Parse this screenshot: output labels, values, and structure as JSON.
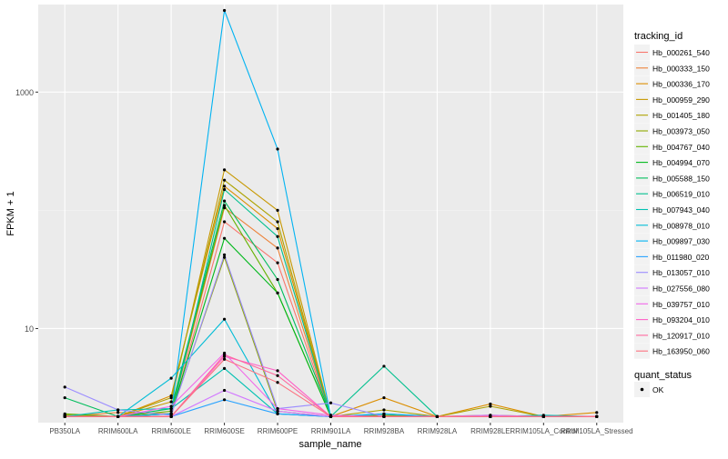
{
  "chart_data": {
    "type": "line",
    "xlabel": "sample_name",
    "ylabel": "FPKM + 1",
    "y_scale": "log10",
    "ylim": [
      1.6,
      5500
    ],
    "grid": true,
    "legend_position": "right",
    "y_ticks": [
      10,
      1000
    ],
    "y_tick_labels": [
      "10",
      "1000"
    ],
    "categories": [
      "PB350LA",
      "RRIM600LA",
      "RRIM600LE",
      "RRIM600SE",
      "RRIM600PE",
      "RRIM901LA",
      "RRIM928BA",
      "RRIM928LA",
      "RRIM928LE",
      "RRIM105LA_Control",
      "RRIM105LA_Stressed"
    ],
    "legend": {
      "color_title": "tracking_id",
      "shape_title": "quant_status",
      "shape_entries": [
        "OK"
      ]
    },
    "series": [
      {
        "name": "Hb_000261_540",
        "color": "#F8766D",
        "values": [
          1.8,
          1.8,
          1.8,
          80,
          36,
          1.8,
          1.8,
          1.8,
          1.8,
          1.8,
          1.8
        ]
      },
      {
        "name": "Hb_000333_150",
        "color": "#EC8239",
        "values": [
          1.8,
          1.95,
          1.9,
          105,
          48,
          1.8,
          1.8,
          1.8,
          1.8,
          1.8,
          1.8
        ]
      },
      {
        "name": "Hb_000336_170",
        "color": "#DB8E00",
        "values": [
          1.85,
          1.8,
          2.7,
          160,
          70,
          1.8,
          2.6,
          1.8,
          2.3,
          1.8,
          1.95
        ]
      },
      {
        "name": "Hb_000959_290",
        "color": "#C79800",
        "values": [
          1.8,
          1.8,
          2.4,
          220,
          100,
          1.8,
          1.8,
          1.8,
          1.8,
          1.8,
          1.8
        ]
      },
      {
        "name": "Hb_001405_180",
        "color": "#AEA200",
        "values": [
          1.85,
          1.8,
          2.6,
          180,
          80,
          1.8,
          2.05,
          1.8,
          2.2,
          1.8,
          1.8
        ]
      },
      {
        "name": "Hb_003973_050",
        "color": "#8FAA00",
        "values": [
          1.85,
          1.8,
          1.9,
          40,
          2.0,
          1.8,
          1.8,
          1.8,
          1.85,
          1.8,
          1.8
        ]
      },
      {
        "name": "Hb_004767_040",
        "color": "#64B200",
        "values": [
          1.9,
          1.8,
          2.0,
          110,
          20,
          1.8,
          1.85,
          1.8,
          1.8,
          1.8,
          1.8
        ]
      },
      {
        "name": "Hb_004994_070",
        "color": "#00B81B",
        "values": [
          1.8,
          1.8,
          1.9,
          58,
          20,
          1.8,
          1.8,
          1.8,
          1.8,
          1.8,
          1.8
        ]
      },
      {
        "name": "Hb_005588_150",
        "color": "#00BD5C",
        "values": [
          2.6,
          1.8,
          2.1,
          120,
          26,
          1.85,
          1.8,
          1.8,
          1.8,
          1.8,
          1.8
        ]
      },
      {
        "name": "Hb_006519_010",
        "color": "#00C08E",
        "values": [
          1.8,
          1.8,
          1.8,
          150,
          60,
          1.8,
          4.8,
          1.8,
          1.8,
          1.8,
          1.8
        ]
      },
      {
        "name": "Hb_007943_040",
        "color": "#00C1B2",
        "values": [
          1.8,
          2.05,
          2.1,
          4.6,
          1.9,
          1.8,
          1.8,
          1.8,
          1.8,
          1.85,
          1.8
        ]
      },
      {
        "name": "Hb_008978_010",
        "color": "#00BCD6",
        "values": [
          1.8,
          1.8,
          3.8,
          12,
          1.9,
          1.8,
          1.9,
          1.8,
          1.8,
          1.8,
          1.8
        ]
      },
      {
        "name": "Hb_009897_030",
        "color": "#00B3F2",
        "values": [
          1.8,
          1.8,
          1.9,
          4900,
          330,
          1.8,
          1.9,
          1.8,
          1.8,
          1.8,
          1.8
        ]
      },
      {
        "name": "Hb_011980_020",
        "color": "#29A3FF",
        "values": [
          1.8,
          1.8,
          1.8,
          2.5,
          1.9,
          1.8,
          1.8,
          1.8,
          1.8,
          1.8,
          1.8
        ]
      },
      {
        "name": "Hb_013057_010",
        "color": "#9C8DFF",
        "values": [
          3.2,
          2.05,
          1.85,
          42,
          2.1,
          2.35,
          1.8,
          1.8,
          1.8,
          1.8,
          1.8
        ]
      },
      {
        "name": "Hb_027556_080",
        "color": "#D277FF",
        "values": [
          1.8,
          1.8,
          1.8,
          3.0,
          2.0,
          1.8,
          1.8,
          1.8,
          1.85,
          1.8,
          1.8
        ]
      },
      {
        "name": "Hb_039757_010",
        "color": "#F166E8",
        "values": [
          1.8,
          1.8,
          2.2,
          6.2,
          2.1,
          1.85,
          1.8,
          1.8,
          1.8,
          1.8,
          1.8
        ]
      },
      {
        "name": "Hb_093204_010",
        "color": "#FF61C7",
        "values": [
          1.8,
          1.8,
          1.8,
          5.8,
          4.4,
          1.8,
          1.8,
          1.8,
          1.8,
          1.8,
          1.8
        ]
      },
      {
        "name": "Hb_120917_010",
        "color": "#FF689E",
        "values": [
          1.8,
          1.8,
          1.8,
          6.0,
          4.0,
          1.8,
          1.8,
          1.8,
          1.8,
          1.8,
          1.8
        ]
      },
      {
        "name": "Hb_163950_060",
        "color": "#FC717F",
        "values": [
          1.8,
          1.8,
          1.8,
          5.5,
          3.5,
          1.8,
          1.8,
          1.8,
          1.8,
          1.8,
          1.8
        ]
      }
    ]
  }
}
